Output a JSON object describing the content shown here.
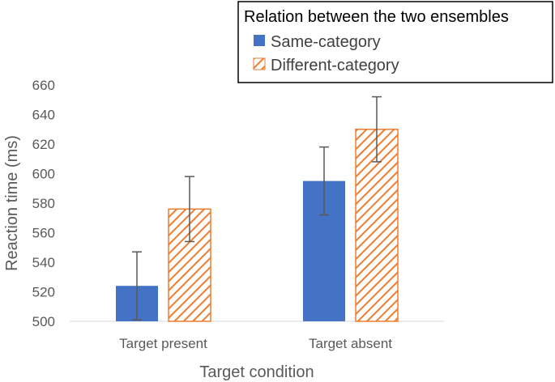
{
  "chart_data": {
    "type": "bar",
    "title": "",
    "xlabel": "Target condition",
    "ylabel": "Reaction time (ms)",
    "categories": [
      "Target present",
      "Target absent"
    ],
    "ylim": [
      500,
      660
    ],
    "yticks": [
      500,
      520,
      540,
      560,
      580,
      600,
      620,
      640,
      660
    ],
    "grid": false,
    "legend": {
      "title": "Relation between the two ensembles",
      "placement": "top-right"
    },
    "series": [
      {
        "name": "Same-category",
        "values": [
          524,
          595
        ],
        "error": [
          23,
          23
        ],
        "color": "#4472C4",
        "fill": "solid"
      },
      {
        "name": "Different-category",
        "values": [
          576,
          630
        ],
        "error": [
          22,
          22
        ],
        "color": "#ED7D31",
        "fill": "diagonal-hatch"
      }
    ]
  }
}
